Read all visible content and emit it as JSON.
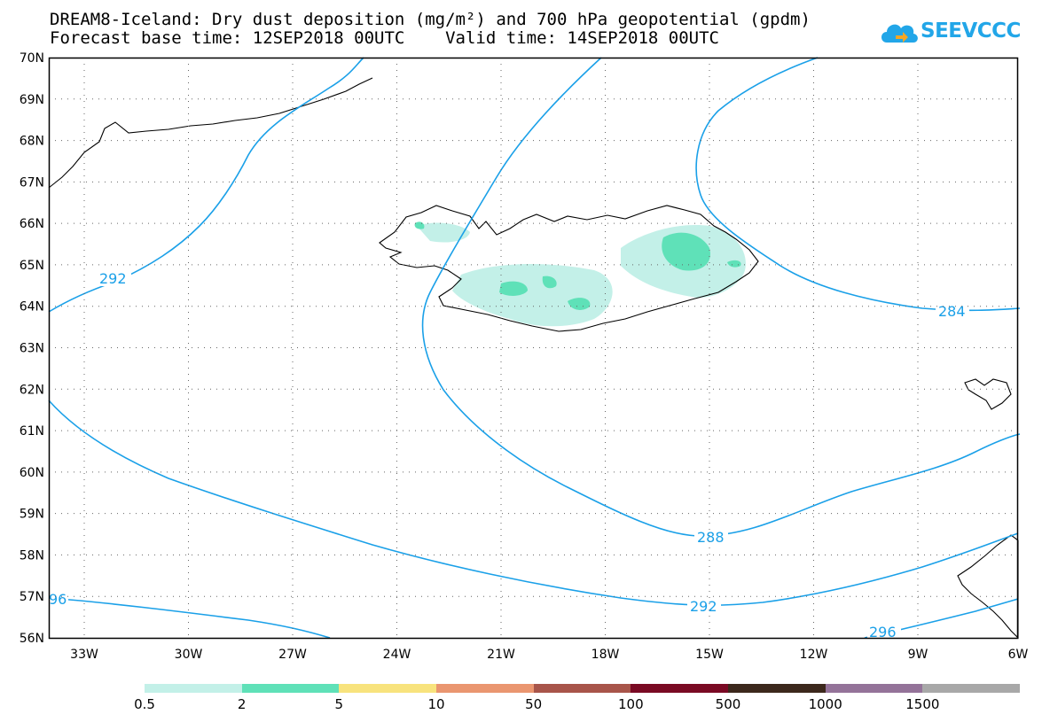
{
  "title": {
    "line1": "DREAM8-Iceland: Dry dust deposition (mg/m²) and 700 hPa geopotential (gpdm)",
    "line2": "Forecast base time: 12SEP2018 00UTC    Valid time: 14SEP2018 00UTC"
  },
  "logo": {
    "text": "SEEVCCC",
    "icon": "cloud-arrow-icon",
    "color": "#22a6e8"
  },
  "map": {
    "lat_labels": [
      "70N",
      "69N",
      "68N",
      "67N",
      "66N",
      "65N",
      "64N",
      "63N",
      "62N",
      "61N",
      "60N",
      "59N",
      "58N",
      "57N",
      "56N"
    ],
    "lon_labels": [
      "33W",
      "30W",
      "27W",
      "24W",
      "21W",
      "18W",
      "15W",
      "12W",
      "9W",
      "6W"
    ],
    "contour_color": "#1aa0e8",
    "contour_labels": [
      "292",
      "284",
      "288",
      "292",
      "96",
      "296"
    ]
  },
  "legend": {
    "labels": [
      "0.5",
      "2",
      "5",
      "10",
      "50",
      "100",
      "500",
      "1000",
      "1500"
    ],
    "colors": [
      "#c3f0e8",
      "#5fe1b8",
      "#f8e37d",
      "#ea9670",
      "#a8554a",
      "#7a0a24",
      "#3c281c",
      "#947399",
      "#a8a8a8"
    ]
  }
}
